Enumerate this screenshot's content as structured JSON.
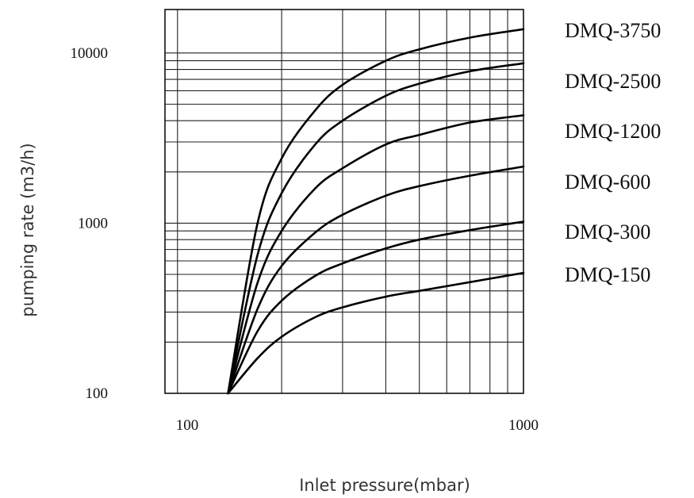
{
  "chart_data": {
    "type": "line",
    "title": "",
    "xlabel": "Inlet pressure(mbar)",
    "ylabel": "pumping rate (m3/h)",
    "x_scale": "log",
    "y_scale": "log",
    "xlim": [
      92,
      1000
    ],
    "ylim": [
      100,
      18000
    ],
    "x_ticks": [
      {
        "value": 100,
        "label": "100"
      },
      {
        "value": 1000,
        "label": "1000"
      }
    ],
    "y_ticks": [
      {
        "value": 100,
        "label": "100"
      },
      {
        "value": 1000,
        "label": "1000"
      },
      {
        "value": 10000,
        "label": "10000"
      }
    ],
    "grid": true,
    "legend": "right",
    "series": [
      {
        "name": "DMQ-3750",
        "x": [
          140,
          170,
          200,
          250,
          300,
          400,
          500,
          700,
          1000
        ],
        "y": [
          100,
          980,
          2400,
          4600,
          6500,
          9000,
          10500,
          12300,
          13800
        ]
      },
      {
        "name": "DMQ-2500",
        "x": [
          140,
          170,
          200,
          250,
          300,
          400,
          500,
          700,
          1000
        ],
        "y": [
          100,
          640,
          1500,
          2900,
          4000,
          5600,
          6600,
          7800,
          8700
        ]
      },
      {
        "name": "DMQ-1200",
        "x": [
          140,
          170,
          200,
          250,
          300,
          400,
          500,
          700,
          1000
        ],
        "y": [
          100,
          440,
          900,
          1600,
          2100,
          2900,
          3300,
          3900,
          4300
        ]
      },
      {
        "name": "DMQ-600",
        "x": [
          140,
          170,
          200,
          250,
          300,
          400,
          500,
          700,
          1000
        ],
        "y": [
          100,
          310,
          560,
          880,
          1120,
          1450,
          1650,
          1900,
          2150
        ]
      },
      {
        "name": "DMQ-300",
        "x": [
          140,
          170,
          200,
          250,
          300,
          400,
          500,
          700,
          1000
        ],
        "y": [
          100,
          230,
          350,
          490,
          580,
          710,
          800,
          910,
          1020
        ]
      },
      {
        "name": "DMQ-150",
        "x": [
          140,
          170,
          200,
          250,
          300,
          400,
          500,
          700,
          1000
        ],
        "y": [
          100,
          160,
          215,
          280,
          320,
          370,
          400,
          450,
          510
        ]
      }
    ]
  }
}
